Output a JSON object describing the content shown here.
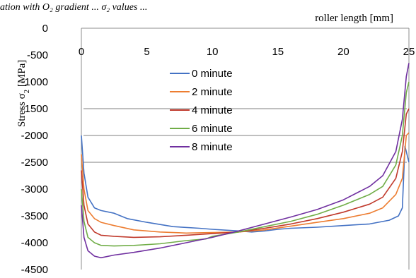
{
  "top_caption": "ation with O₂ gradient ... σ₂ values ...",
  "chart_data": {
    "type": "line",
    "xlabel": "roller length [mm]",
    "ylabel_main": "Stress σ",
    "ylabel_sub": "2",
    "ylabel_unit": " [MPa]",
    "xlim": [
      0,
      25
    ],
    "ylim": [
      -4500,
      0
    ],
    "x_ticks": [
      0,
      5,
      10,
      15,
      20,
      25
    ],
    "y_ticks": [
      0,
      -500,
      -1000,
      -1500,
      -2000,
      -2500,
      -3000,
      -3500,
      -4000,
      -4500
    ],
    "gridlines_y": [
      -1500,
      -2000,
      -2500
    ],
    "legend_position": "center-left",
    "series": [
      {
        "name": "0 minute",
        "color": "#4472c4",
        "points": [
          [
            0,
            -2000
          ],
          [
            0.2,
            -2700
          ],
          [
            0.5,
            -3150
          ],
          [
            1,
            -3350
          ],
          [
            1.5,
            -3400
          ],
          [
            2.5,
            -3450
          ],
          [
            3.5,
            -3550
          ],
          [
            5,
            -3620
          ],
          [
            7,
            -3700
          ],
          [
            9,
            -3730
          ],
          [
            10,
            -3750
          ],
          [
            12,
            -3780
          ],
          [
            13,
            -3800
          ],
          [
            14,
            -3780
          ],
          [
            15,
            -3750
          ],
          [
            16,
            -3730
          ],
          [
            18,
            -3710
          ],
          [
            20,
            -3680
          ],
          [
            22,
            -3650
          ],
          [
            23.5,
            -3580
          ],
          [
            24.2,
            -3500
          ],
          [
            24.5,
            -3350
          ],
          [
            24.7,
            -2200
          ],
          [
            25,
            -2500
          ]
        ]
      },
      {
        "name": "2 minute",
        "color": "#ed7d31",
        "points": [
          [
            0,
            -2350
          ],
          [
            0.2,
            -3000
          ],
          [
            0.5,
            -3400
          ],
          [
            1,
            -3550
          ],
          [
            1.5,
            -3620
          ],
          [
            2.5,
            -3680
          ],
          [
            4,
            -3760
          ],
          [
            6,
            -3800
          ],
          [
            8,
            -3820
          ],
          [
            10,
            -3810
          ],
          [
            12,
            -3800
          ],
          [
            14,
            -3760
          ],
          [
            16,
            -3690
          ],
          [
            18,
            -3620
          ],
          [
            20,
            -3550
          ],
          [
            22,
            -3450
          ],
          [
            23,
            -3350
          ],
          [
            24,
            -3100
          ],
          [
            24.5,
            -2800
          ],
          [
            24.8,
            -2000
          ],
          [
            25,
            -1950
          ]
        ]
      },
      {
        "name": "4 minute",
        "color": "#c0392b",
        "points": [
          [
            0,
            -2650
          ],
          [
            0.2,
            -3300
          ],
          [
            0.5,
            -3650
          ],
          [
            1,
            -3800
          ],
          [
            1.5,
            -3860
          ],
          [
            2.5,
            -3880
          ],
          [
            4,
            -3900
          ],
          [
            6,
            -3890
          ],
          [
            8,
            -3860
          ],
          [
            10,
            -3830
          ],
          [
            12,
            -3800
          ],
          [
            14,
            -3730
          ],
          [
            16,
            -3650
          ],
          [
            18,
            -3550
          ],
          [
            20,
            -3430
          ],
          [
            22,
            -3280
          ],
          [
            23,
            -3150
          ],
          [
            24,
            -2800
          ],
          [
            24.5,
            -2300
          ],
          [
            24.8,
            -1600
          ],
          [
            25,
            -1500
          ]
        ]
      },
      {
        "name": "6 minute",
        "color": "#70ad47",
        "points": [
          [
            0,
            -3000
          ],
          [
            0.2,
            -3600
          ],
          [
            0.5,
            -3900
          ],
          [
            1,
            -4000
          ],
          [
            1.5,
            -4050
          ],
          [
            2.5,
            -4060
          ],
          [
            4,
            -4050
          ],
          [
            6,
            -4020
          ],
          [
            8,
            -3960
          ],
          [
            9.5,
            -3930
          ],
          [
            10,
            -3880
          ],
          [
            12,
            -3800
          ],
          [
            14,
            -3700
          ],
          [
            16,
            -3600
          ],
          [
            18,
            -3470
          ],
          [
            20,
            -3300
          ],
          [
            22,
            -3100
          ],
          [
            23,
            -2950
          ],
          [
            24,
            -2550
          ],
          [
            24.5,
            -2000
          ],
          [
            24.8,
            -1200
          ],
          [
            25,
            -1000
          ]
        ]
      },
      {
        "name": "8 minute",
        "color": "#7030a0",
        "points": [
          [
            0,
            -3300
          ],
          [
            0.2,
            -3900
          ],
          [
            0.5,
            -4150
          ],
          [
            1,
            -4250
          ],
          [
            1.5,
            -4280
          ],
          [
            2.5,
            -4230
          ],
          [
            4,
            -4180
          ],
          [
            6,
            -4100
          ],
          [
            8,
            -4000
          ],
          [
            10,
            -3900
          ],
          [
            12,
            -3780
          ],
          [
            14,
            -3650
          ],
          [
            16,
            -3520
          ],
          [
            18,
            -3380
          ],
          [
            20,
            -3200
          ],
          [
            22,
            -2950
          ],
          [
            23,
            -2750
          ],
          [
            24,
            -2300
          ],
          [
            24.5,
            -1700
          ],
          [
            24.8,
            -900
          ],
          [
            25,
            -650
          ]
        ]
      }
    ]
  }
}
